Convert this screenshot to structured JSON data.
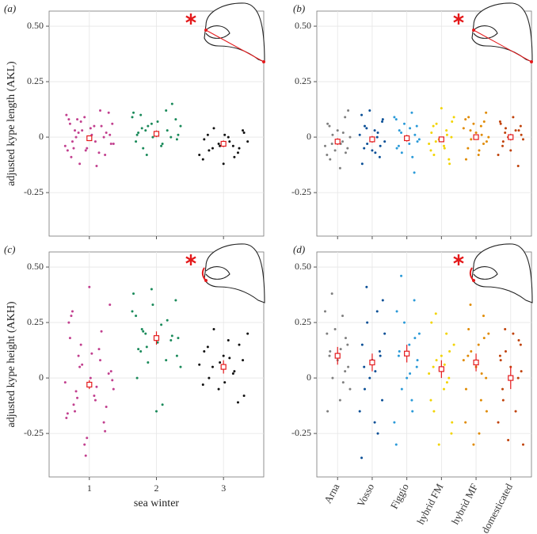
{
  "chart_data": [
    {
      "type": "strip",
      "panel_label": "(a)",
      "ylabel": "adjusted kype length (AKL)",
      "categories": [
        null,
        null,
        null
      ],
      "colors": [
        "#c2408f",
        "#1a8a5a",
        "#111111"
      ],
      "values": [
        [
          0.02,
          -0.05,
          0.08,
          -0.03,
          0.11,
          0.0,
          -0.07,
          0.05,
          -0.01,
          0.09,
          -0.12,
          0.03,
          0.06,
          -0.04,
          0.01,
          -0.08,
          0.12,
          -0.02,
          0.04,
          -0.06,
          0.07,
          0.0,
          -0.09,
          0.1,
          -0.03,
          0.02,
          0.05,
          -0.13,
          0.01,
          -0.05,
          0.03,
          0.08,
          -0.02,
          -0.06,
          0.06
        ],
        [
          0.03,
          0.1,
          -0.02,
          0.05,
          0.08,
          0.0,
          0.12,
          -0.04,
          0.02,
          0.06,
          -0.08,
          0.04,
          0.01,
          0.09,
          -0.01,
          0.15,
          0.03,
          -0.03,
          0.07,
          0.0,
          0.05,
          -0.05,
          0.02,
          0.11,
          0.01
        ],
        [
          -0.05,
          0.01,
          -0.1,
          -0.02,
          0.03,
          -0.07,
          -0.04,
          0.0,
          -0.12,
          -0.03,
          0.04,
          -0.06,
          -0.01,
          -0.08,
          0.02,
          -0.05,
          -0.09,
          -0.02,
          0.01,
          -0.04
        ]
      ],
      "means": [
        -0.005,
        0.015,
        -0.03
      ],
      "ci_low": [
        -0.015,
        0.0,
        -0.045
      ],
      "ci_high": [
        0.005,
        0.03,
        -0.015
      ],
      "ylim": [
        -0.446,
        0.568
      ],
      "yticks": [
        -0.25,
        0,
        0.25,
        {
          "value": 0.5,
          "label": "0.50"
        }
      ],
      "grid": true
    },
    {
      "type": "strip",
      "panel_label": "(b)",
      "categories": [
        null,
        null,
        null,
        null,
        null,
        null
      ],
      "colors": [
        "#7f7f7f",
        "#0a4f96",
        "#2a9ad8",
        "#f2d400",
        "#e08a00",
        "#c0420a"
      ],
      "values": [
        [
          -0.03,
          0.05,
          -0.08,
          0.0,
          -0.05,
          0.09,
          -0.02,
          -0.14,
          0.03,
          -0.06,
          0.01,
          -0.1,
          0.06,
          -0.04,
          0.12,
          -0.07,
          0.02,
          -0.03
        ],
        [
          0.04,
          -0.05,
          0.1,
          -0.02,
          0.07,
          -0.09,
          0.0,
          0.03,
          -0.06,
          0.12,
          -0.03,
          0.05,
          -0.12,
          0.01,
          0.08,
          -0.04,
          0.02,
          -0.07
        ],
        [
          0.02,
          -0.04,
          0.08,
          -0.01,
          0.05,
          -0.16,
          0.11,
          -0.03,
          0.0,
          0.06,
          -0.07,
          0.03,
          -0.05,
          0.09,
          -0.02,
          0.01,
          -0.09,
          0.04
        ],
        [
          -0.02,
          0.05,
          -0.06,
          0.09,
          0.0,
          -0.1,
          0.03,
          -0.04,
          0.13,
          -0.01,
          0.06,
          -0.08,
          0.02,
          -0.03,
          0.07,
          -0.12,
          0.01,
          -0.05
        ],
        [
          0.03,
          -0.05,
          0.08,
          0.0,
          0.11,
          -0.03,
          0.05,
          -0.08,
          0.02,
          0.06,
          -0.01,
          0.09,
          -0.1,
          0.04,
          -0.02,
          0.07,
          0.01,
          -0.06
        ],
        [
          0.02,
          -0.04,
          0.07,
          -0.01,
          0.05,
          -0.13,
          0.03,
          0.09,
          -0.06,
          0.0,
          0.04,
          -0.02,
          0.06,
          -0.08,
          0.01,
          0.03
        ]
      ],
      "means": [
        -0.02,
        -0.01,
        -0.005,
        -0.01,
        0.0,
        0.0
      ],
      "ci_low": [
        -0.035,
        -0.025,
        -0.02,
        -0.022,
        -0.012,
        -0.015
      ],
      "ci_high": [
        -0.005,
        0.005,
        0.01,
        0.002,
        0.012,
        0.015
      ],
      "ylim": [
        -0.446,
        0.568
      ],
      "yticks": [
        -0.25,
        0,
        0.25,
        {
          "value": 0.5,
          "label": "0.50"
        }
      ],
      "grid": true
    },
    {
      "type": "strip",
      "panel_label": "(c)",
      "ylabel": "adjusted kype height (AKH)",
      "xlabel": "sea winter",
      "categories": [
        "1",
        "2",
        "3"
      ],
      "colors": [
        "#c2408f",
        "#1a8a5a",
        "#111111"
      ],
      "values": [
        [
          0.1,
          -0.12,
          0.25,
          -0.05,
          0.02,
          -0.2,
          0.13,
          -0.08,
          0.41,
          -0.3,
          0.05,
          -0.15,
          0.18,
          -0.02,
          0.33,
          -0.24,
          0.08,
          -0.1,
          0.0,
          -0.35,
          0.15,
          -0.06,
          0.28,
          -0.18,
          0.03,
          -0.13,
          0.21,
          -0.04,
          0.11,
          -0.27,
          0.06,
          -0.09,
          0.3,
          -0.16,
          -0.01
        ],
        [
          0.2,
          0.12,
          0.28,
          0.05,
          0.35,
          0.17,
          0.08,
          0.24,
          -0.15,
          0.4,
          0.14,
          0.22,
          0.0,
          0.3,
          0.1,
          0.19,
          0.26,
          -0.12,
          0.16,
          0.33,
          0.07,
          0.21,
          0.13,
          0.38,
          0.18
        ],
        [
          0.05,
          0.14,
          -0.03,
          0.2,
          0.08,
          -0.11,
          0.02,
          0.17,
          0.1,
          -0.05,
          0.22,
          0.0,
          0.12,
          0.06,
          -0.08,
          0.15,
          0.03,
          0.09,
          -0.02,
          0.07
        ]
      ],
      "means": [
        -0.03,
        0.18,
        0.05
      ],
      "ci_low": [
        -0.05,
        0.15,
        0.02
      ],
      "ci_high": [
        -0.01,
        0.21,
        0.08
      ],
      "ylim": [
        -0.446,
        0.568
      ],
      "yticks": [
        -0.25,
        0,
        0.25,
        {
          "value": 0.5,
          "label": "0.50"
        }
      ],
      "grid": true
    },
    {
      "type": "strip",
      "panel_label": "(d)",
      "categories": [
        "Arna",
        "Vosso",
        "Figgio",
        "hybrid FM",
        "hybrid MF",
        "domesticated"
      ],
      "colors": [
        "#7f7f7f",
        "#0a4f96",
        "#2a9ad8",
        "#f2d400",
        "#e08a00",
        "#c0420a"
      ],
      "values": [
        [
          0.38,
          0.1,
          0.2,
          -0.05,
          0.15,
          0.03,
          0.28,
          -0.1,
          0.08,
          0.22,
          0.0,
          0.12,
          -0.15,
          0.3,
          0.05,
          0.18,
          -0.02,
          0.13
        ],
        [
          0.41,
          0.05,
          -0.36,
          0.2,
          -0.1,
          0.12,
          0.3,
          -0.2,
          0.08,
          0.0,
          0.25,
          -0.05,
          0.15,
          -0.15,
          0.35,
          0.1,
          -0.25,
          0.03
        ],
        [
          0.46,
          0.1,
          -0.3,
          0.2,
          0.05,
          0.35,
          -0.1,
          0.15,
          0.0,
          0.25,
          -0.05,
          0.12,
          0.3,
          -0.2,
          0.08,
          0.18,
          -0.15,
          0.02
        ],
        [
          0.29,
          0.05,
          -0.1,
          0.15,
          -0.25,
          0.0,
          0.2,
          -0.05,
          0.1,
          -0.3,
          0.08,
          -0.15,
          0.25,
          0.02,
          -0.2,
          0.12,
          -0.02,
          0.06
        ],
        [
          0.33,
          0.1,
          -0.2,
          0.2,
          0.0,
          0.28,
          -0.1,
          0.15,
          0.05,
          -0.3,
          0.12,
          0.22,
          -0.05,
          0.08,
          -0.15,
          0.18,
          0.02,
          -0.25
        ],
        [
          0.22,
          -0.05,
          0.1,
          -0.3,
          0.15,
          0.0,
          -0.15,
          0.2,
          0.05,
          -0.28,
          0.12,
          -0.1,
          0.08,
          -0.2,
          0.03,
          0.17
        ]
      ],
      "means": [
        0.1,
        0.07,
        0.11,
        0.04,
        0.07,
        0.0
      ],
      "ci_low": [
        0.06,
        0.03,
        0.07,
        0.0,
        0.03,
        -0.05
      ],
      "ci_high": [
        0.14,
        0.11,
        0.15,
        0.08,
        0.11,
        0.05
      ],
      "ylim": [
        -0.446,
        0.568
      ],
      "yticks": [
        -0.25,
        0,
        0.25,
        {
          "value": 0.5,
          "label": "0.50"
        }
      ],
      "grid": true
    }
  ]
}
